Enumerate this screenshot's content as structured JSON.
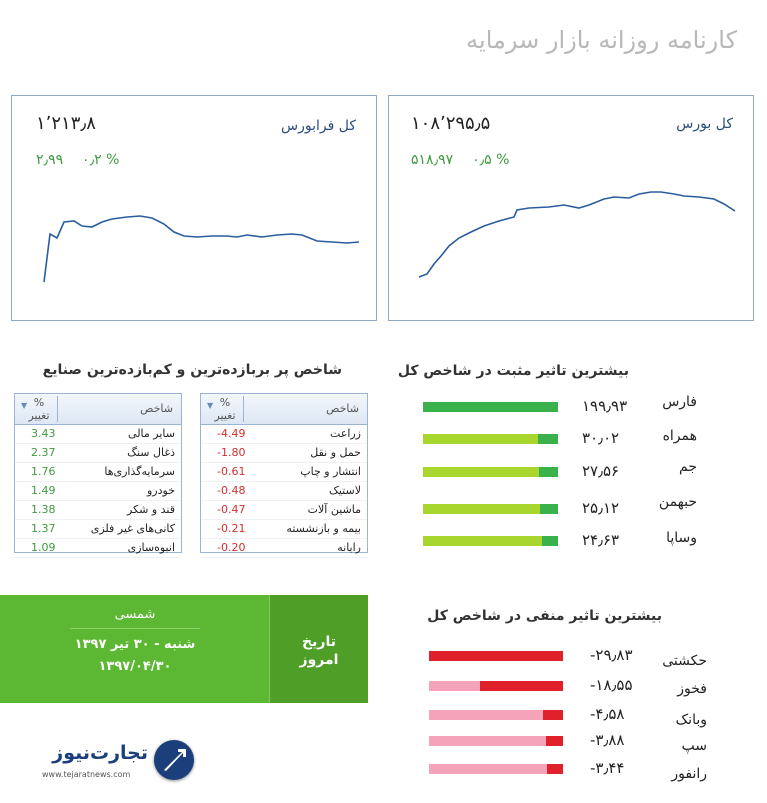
{
  "page_title": "کارنامه روزانه بازار سرمایه",
  "cards": {
    "bourse": {
      "name": "کل بورس",
      "value": "۱۰۸٬۲۹۵٫۵",
      "change_pct": "۰٫۵ %",
      "change_abs": "۵۱۸٫۹۷"
    },
    "farabourse": {
      "name": "کل فرابورس",
      "value": "۱٬۲۱۳٫۸",
      "change_pct": "۰٫۲ %",
      "change_abs": "۲٫۹۹"
    }
  },
  "positive_section": {
    "title": "بیشترین تاثیر مثبت در شاخص کل",
    "items": [
      {
        "name": "فارس",
        "value": "۱۹۹٫۹۳",
        "fraction": 1.0
      },
      {
        "name": "همراه",
        "value": "۳۰٫۰۲",
        "fraction": 0.15
      },
      {
        "name": "جم",
        "value": "۲۷٫۵۶",
        "fraction": 0.14
      },
      {
        "name": "حبهمن",
        "value": "۲۵٫۱۲",
        "fraction": 0.13
      },
      {
        "name": "وساپا",
        "value": "۲۴٫۶۳",
        "fraction": 0.12
      }
    ]
  },
  "negative_section": {
    "title": "بیشترین تاثیر منفی در شاخص کل",
    "items": [
      {
        "name": "حکشتی",
        "value": "-۲۹٫۸۳",
        "fraction": 1.0
      },
      {
        "name": "فخوز",
        "value": "-۱۸٫۵۵",
        "fraction": 0.62
      },
      {
        "name": "وبانک",
        "value": "-۴٫۵۸",
        "fraction": 0.15
      },
      {
        "name": "سپ",
        "value": "-۳٫۸۸",
        "fraction": 0.13
      },
      {
        "name": "رانفور",
        "value": "-۳٫۴۴",
        "fraction": 0.11
      }
    ]
  },
  "industries": {
    "title": "شاخص پر بربازده‌ترین و کم‌بازده‌ترین صنایع",
    "header": {
      "name": "شاخص",
      "pct": "%",
      "pct_sub": "تغییر"
    },
    "losers": [
      {
        "name": "زراعت",
        "pct": "-4.49"
      },
      {
        "name": "حمل و نقل",
        "pct": "-1.80"
      },
      {
        "name": "انتشار و چاپ",
        "pct": "-0.61"
      },
      {
        "name": "لاستیک",
        "pct": "-0.48"
      },
      {
        "name": "ماشین آلات",
        "pct": "-0.47"
      },
      {
        "name": "بیمه و بازنشسته",
        "pct": "-0.21"
      },
      {
        "name": "رایانه",
        "pct": "-0.20"
      }
    ],
    "gainers": [
      {
        "name": "سایر مالی",
        "pct": "3.43"
      },
      {
        "name": "ذغال سنگ",
        "pct": "2.37"
      },
      {
        "name": "سرمایه‌گذاری‌ها",
        "pct": "1.76"
      },
      {
        "name": "خودرو",
        "pct": "1.49"
      },
      {
        "name": "قند و شکر",
        "pct": "1.38"
      },
      {
        "name": "کانی‌های غیر فلزی",
        "pct": "1.37"
      },
      {
        "name": "انبوه‌سازی",
        "pct": "1.09"
      }
    ]
  },
  "date_box": {
    "label_line1": "تاریخ",
    "label_line2": "امروز",
    "type": "شمسی",
    "line1": "شنبه - ۳۰ تیر ۱۳۹۷",
    "line2": "۱۳۹۷/۰۴/۳۰"
  },
  "logo": {
    "brand": "تجارت‌نیوز",
    "url_text": "www.tejaratnews.com"
  },
  "colors": {
    "positive_main": "#3ab14a",
    "positive_light": "#a8d62e",
    "negative_main": "#e0202a",
    "negative_light": "#f4a3b8",
    "date_green": "#5cb832",
    "up_text": "#3f9a3f",
    "down_text": "#d03030"
  }
}
